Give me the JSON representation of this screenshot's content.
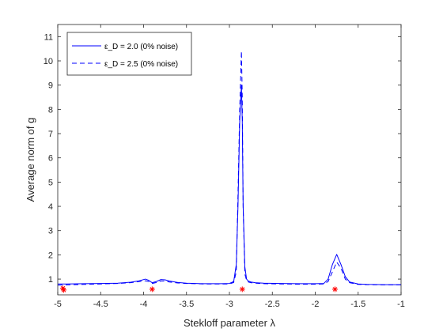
{
  "chart_data": {
    "type": "line",
    "title": "",
    "xlabel": "Stekloff parameter λ",
    "ylabel": "Average norm of g",
    "xlim": [
      -5,
      -1
    ],
    "ylim": [
      0.35,
      11.5
    ],
    "xticks": [
      -5,
      -4.5,
      -4,
      -3.5,
      -3,
      -2.5,
      -2,
      -1.5,
      -1
    ],
    "yticks": [
      1,
      2,
      3,
      4,
      5,
      6,
      7,
      8,
      9,
      10,
      11
    ],
    "grid": false,
    "legend_position": "top-left",
    "series": [
      {
        "name": "ε_D = 2.0 (0% noise)",
        "color": "#0000ff",
        "dash": "solid",
        "x": [
          -5,
          -4.9,
          -4.7,
          -4.5,
          -4.3,
          -4.15,
          -4.05,
          -3.98,
          -3.94,
          -3.9,
          -3.85,
          -3.8,
          -3.75,
          -3.7,
          -3.6,
          -3.5,
          -3.3,
          -3.1,
          -3.0,
          -2.95,
          -2.92,
          -2.9,
          -2.88,
          -2.86,
          -2.85,
          -2.84,
          -2.82,
          -2.8,
          -2.78,
          -2.75,
          -2.7,
          -2.6,
          -2.4,
          -2.2,
          -2.0,
          -1.9,
          -1.85,
          -1.8,
          -1.75,
          -1.7,
          -1.65,
          -1.6,
          -1.5,
          -1.4,
          -1.2,
          -1.0
        ],
        "y": [
          0.8,
          0.8,
          0.81,
          0.82,
          0.83,
          0.87,
          0.93,
          1.0,
          0.95,
          0.85,
          0.9,
          0.98,
          0.97,
          0.92,
          0.86,
          0.83,
          0.81,
          0.81,
          0.82,
          0.9,
          1.6,
          4.0,
          7.5,
          9.0,
          7.5,
          4.0,
          1.5,
          1.0,
          0.92,
          0.88,
          0.85,
          0.83,
          0.82,
          0.81,
          0.81,
          0.82,
          1.0,
          1.6,
          2.02,
          1.6,
          1.1,
          0.88,
          0.8,
          0.78,
          0.77,
          0.77
        ]
      },
      {
        "name": "ε_D = 2.5 (0% noise)",
        "color": "#0000ff",
        "dash": "dashed",
        "x": [
          -5,
          -4.9,
          -4.7,
          -4.5,
          -4.3,
          -4.15,
          -4.05,
          -3.98,
          -3.94,
          -3.9,
          -3.85,
          -3.8,
          -3.75,
          -3.7,
          -3.6,
          -3.5,
          -3.3,
          -3.1,
          -3.0,
          -2.95,
          -2.92,
          -2.9,
          -2.88,
          -2.86,
          -2.85,
          -2.84,
          -2.82,
          -2.8,
          -2.78,
          -2.75,
          -2.7,
          -2.6,
          -2.4,
          -2.2,
          -2.0,
          -1.9,
          -1.85,
          -1.8,
          -1.75,
          -1.7,
          -1.65,
          -1.6,
          -1.5,
          -1.4,
          -1.2,
          -1.0
        ],
        "y": [
          0.75,
          0.76,
          0.78,
          0.8,
          0.82,
          0.85,
          0.9,
          0.93,
          0.9,
          0.82,
          0.86,
          0.92,
          0.92,
          0.88,
          0.84,
          0.82,
          0.8,
          0.8,
          0.8,
          0.86,
          1.3,
          4.5,
          8.0,
          10.4,
          8.5,
          4.0,
          1.2,
          0.95,
          0.88,
          0.85,
          0.83,
          0.81,
          0.8,
          0.79,
          0.79,
          0.8,
          0.9,
          1.3,
          1.7,
          1.45,
          1.0,
          0.85,
          0.78,
          0.77,
          0.76,
          0.76
        ]
      }
    ],
    "markers": {
      "name": "reference eigenvalues",
      "color": "#ff0000",
      "symbol": "asterisk",
      "x": [
        -4.94,
        -4.93,
        -3.9,
        -2.85,
        -1.77
      ],
      "y": [
        0.62,
        0.55,
        0.58,
        0.58,
        0.58
      ]
    }
  }
}
